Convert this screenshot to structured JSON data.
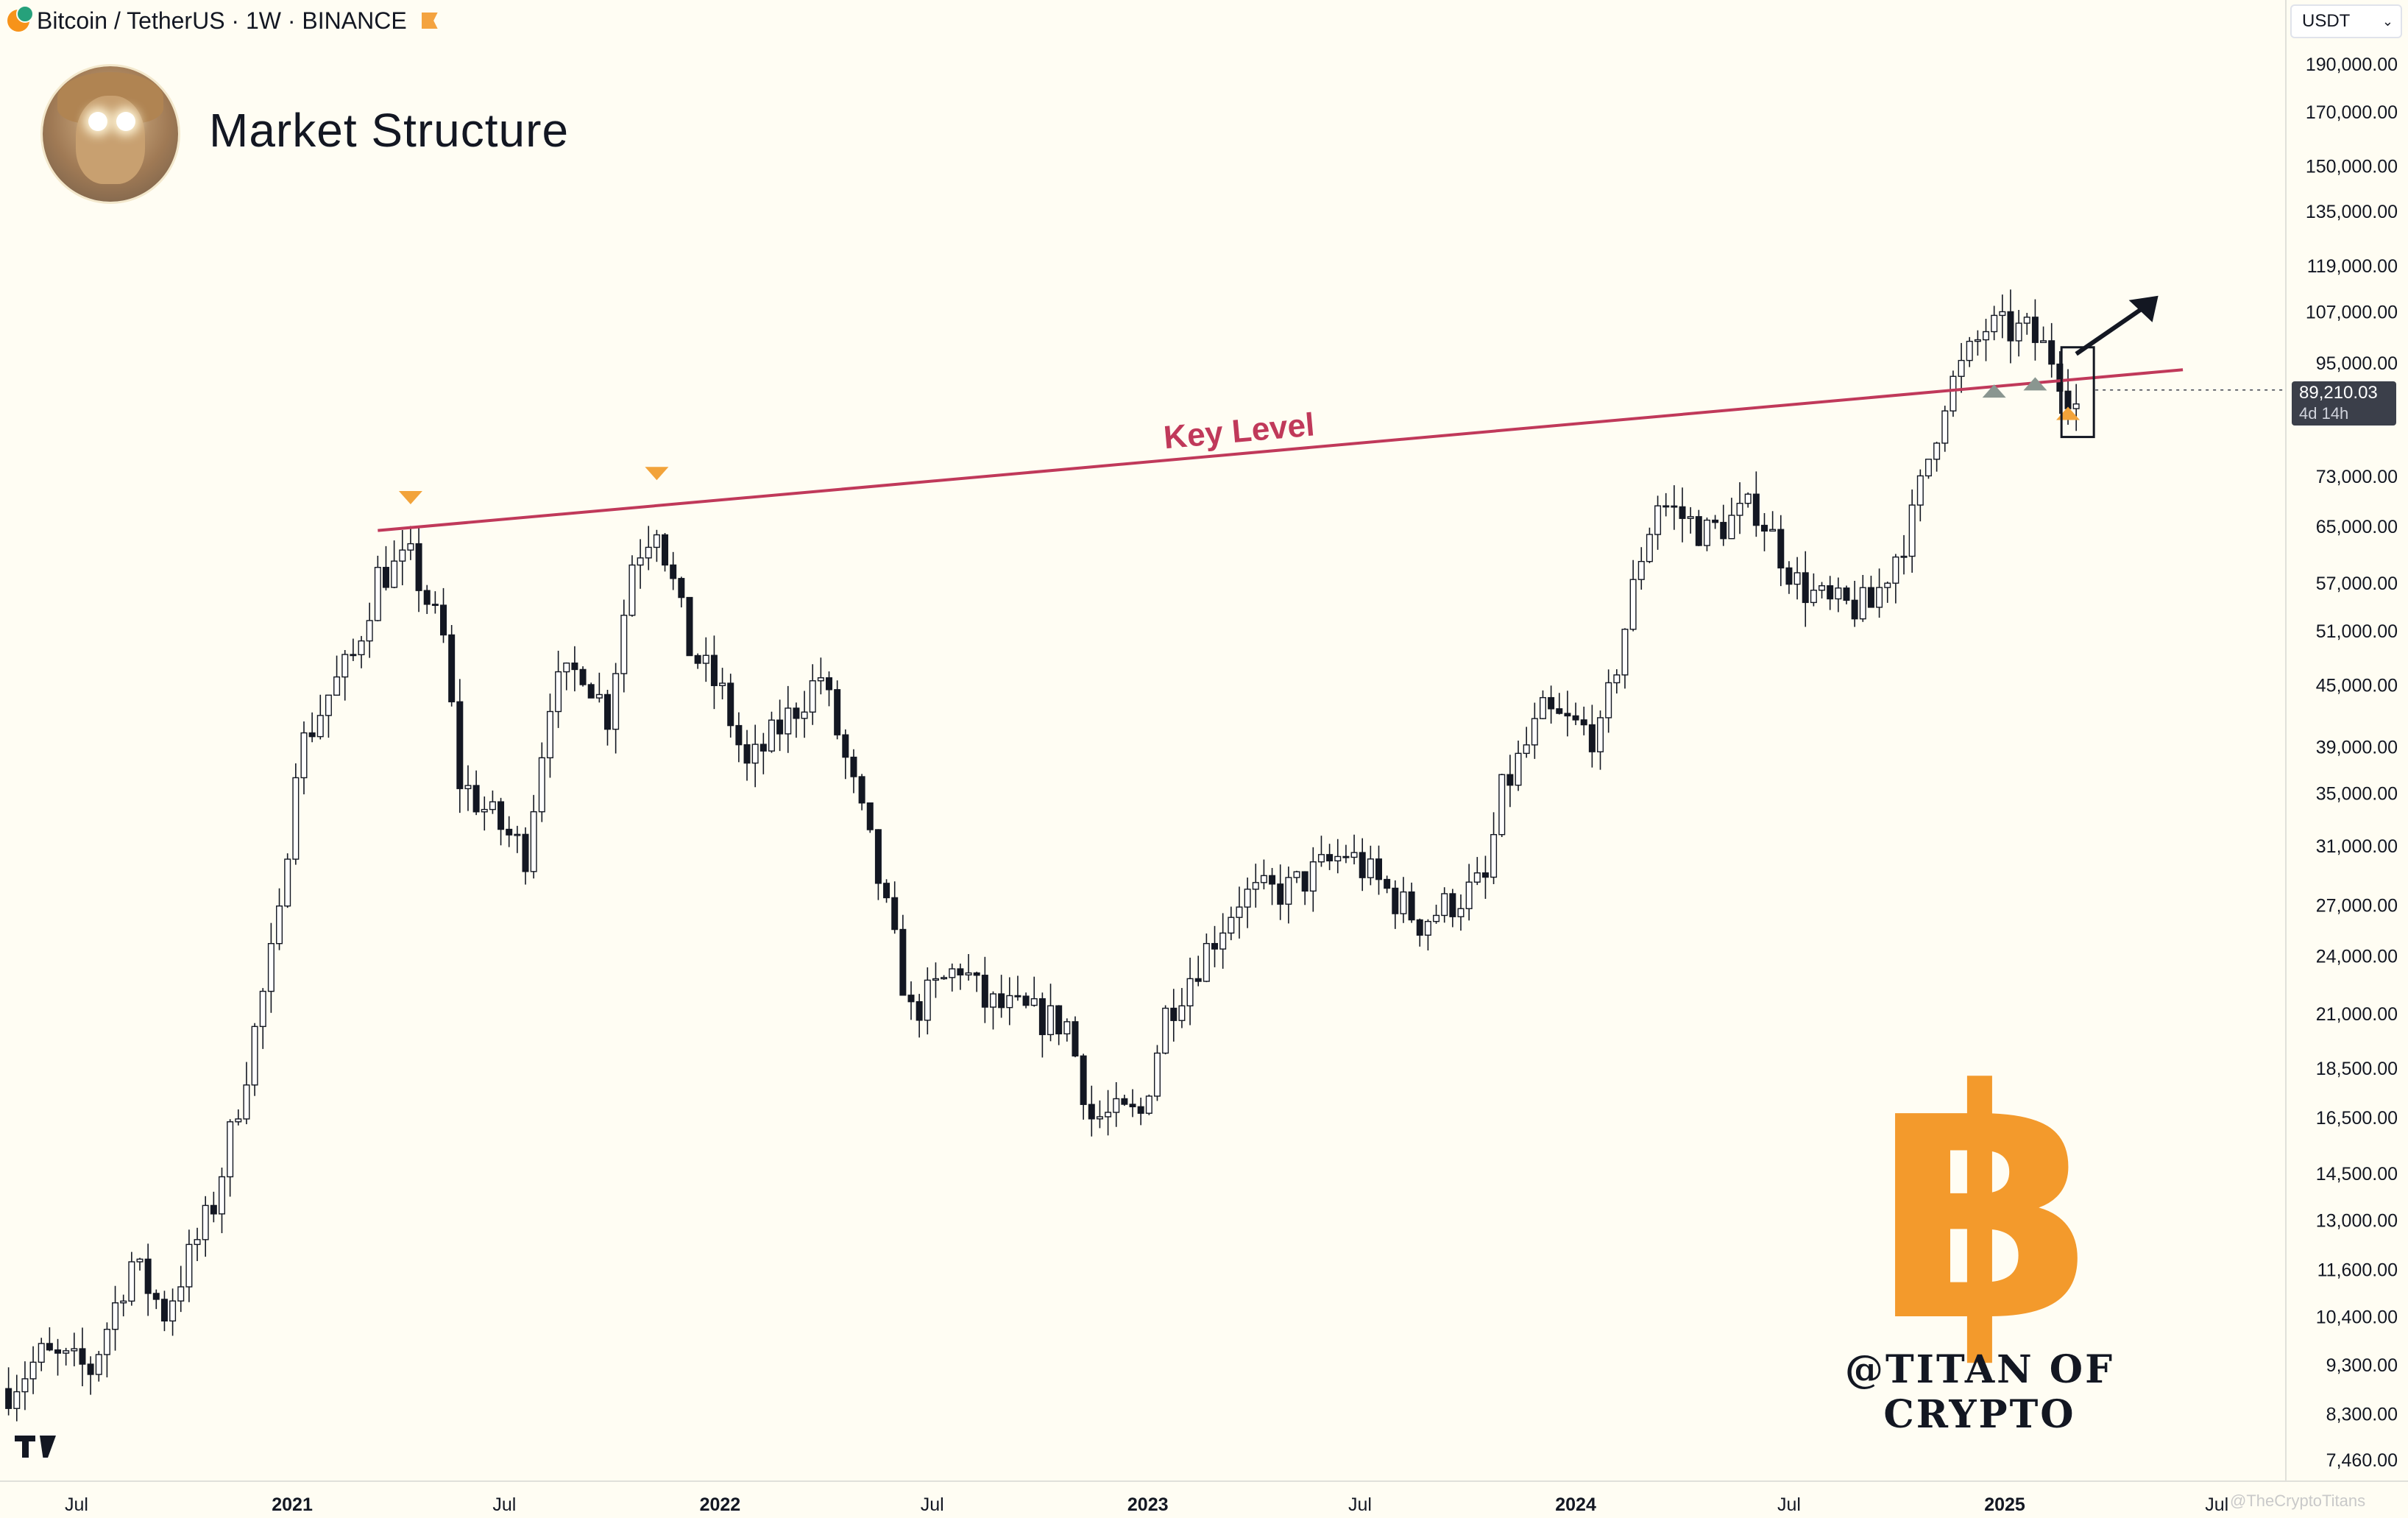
{
  "header": {
    "symbol_line": "Bitcoin / TetherUS · 1W · BINANCE"
  },
  "title": "Market Structure",
  "currency_select": {
    "value": "USDT"
  },
  "price_label": {
    "price": "89,210.03",
    "countdown": "4d 14h"
  },
  "watermark": "@TITAN OF CRYPTO",
  "watermark_small": "@TheCryptoTitans",
  "brand_logo_glyph": "฿",
  "colors": {
    "background": "#fffdf3",
    "candle": "#131722",
    "key_level": "#c0395a",
    "marker": "#f2a33a",
    "marker_gray": "#8a9690",
    "btc_orange": "#f39a2c"
  },
  "chart_data": {
    "type": "candlestick",
    "title": "Market Structure",
    "scale": "log",
    "y_ticks": [
      190000,
      170000,
      150000,
      135000,
      119000,
      107000,
      95000,
      73000,
      65000,
      57000,
      51000,
      45000,
      39000,
      35000,
      31000,
      27000,
      24000,
      21000,
      18500,
      16500,
      14500,
      13000,
      11600,
      10400,
      9300,
      8300,
      7460
    ],
    "y_tick_labels": [
      "190,000.00",
      "170,000.00",
      "150,000.00",
      "135,000.00",
      "119,000.00",
      "107,000.00",
      "95,000.00",
      "73,000.00",
      "65,000.00",
      "57,000.00",
      "51,000.00",
      "45,000.00",
      "39,000.00",
      "35,000.00",
      "31,000.00",
      "27,000.00",
      "24,000.00",
      "21,000.00",
      "18,500.00",
      "16,500.00",
      "14,500.00",
      "13,000.00",
      "11,600.00",
      "10,400.00",
      "9,300.00",
      "8,300.00",
      "7,460.00"
    ],
    "x_ticks": [
      {
        "label": "Jul",
        "date": "2020-07-01",
        "bold": false
      },
      {
        "label": "2021",
        "date": "2021-01-01",
        "bold": true
      },
      {
        "label": "Jul",
        "date": "2021-07-01",
        "bold": false
      },
      {
        "label": "2022",
        "date": "2022-01-01",
        "bold": true
      },
      {
        "label": "Jul",
        "date": "2022-07-01",
        "bold": false
      },
      {
        "label": "2023",
        "date": "2023-01-01",
        "bold": true
      },
      {
        "label": "Jul",
        "date": "2023-07-01",
        "bold": false
      },
      {
        "label": "2024",
        "date": "2024-01-01",
        "bold": true
      },
      {
        "label": "Jul",
        "date": "2024-07-01",
        "bold": false
      },
      {
        "label": "2025",
        "date": "2025-01-01",
        "bold": true
      },
      {
        "label": "Jul",
        "date": "2025-07-01",
        "bold": false
      }
    ],
    "anchors": [
      [
        "2020-05-04",
        8800
      ],
      [
        "2020-06-01",
        9500
      ],
      [
        "2020-07-13",
        9200
      ],
      [
        "2020-08-17",
        11800
      ],
      [
        "2020-09-14",
        10500
      ],
      [
        "2020-10-26",
        13500
      ],
      [
        "2020-11-23",
        18500
      ],
      [
        "2020-12-21",
        26000
      ],
      [
        "2021-01-04",
        38000
      ],
      [
        "2021-02-01",
        44000
      ],
      [
        "2021-02-22",
        48000
      ],
      [
        "2021-03-15",
        58000
      ],
      [
        "2021-04-12",
        60000
      ],
      [
        "2021-05-10",
        50000
      ],
      [
        "2021-05-24",
        36000
      ],
      [
        "2021-06-21",
        33000
      ],
      [
        "2021-07-19",
        30500
      ],
      [
        "2021-08-09",
        44000
      ],
      [
        "2021-09-06",
        47000
      ],
      [
        "2021-09-27",
        42000
      ],
      [
        "2021-10-18",
        60000
      ],
      [
        "2021-11-08",
        66000
      ],
      [
        "2021-12-06",
        49000
      ],
      [
        "2022-01-03",
        44000
      ],
      [
        "2022-01-24",
        37000
      ],
      [
        "2022-03-28",
        46000
      ],
      [
        "2022-05-09",
        31000
      ],
      [
        "2022-06-13",
        21000
      ],
      [
        "2022-07-25",
        23500
      ],
      [
        "2022-08-15",
        21500
      ],
      [
        "2022-10-24",
        20500
      ],
      [
        "2022-11-14",
        16500
      ],
      [
        "2022-12-26",
        16600
      ],
      [
        "2023-01-16",
        21000
      ],
      [
        "2023-03-20",
        27500
      ],
      [
        "2023-05-01",
        28000
      ],
      [
        "2023-06-19",
        30500
      ],
      [
        "2023-08-21",
        26000
      ],
      [
        "2023-10-16",
        28500
      ],
      [
        "2023-10-30",
        35000
      ],
      [
        "2023-12-04",
        42000
      ],
      [
        "2024-01-22",
        40000
      ],
      [
        "2024-02-26",
        61000
      ],
      [
        "2024-03-11",
        69000
      ],
      [
        "2024-04-22",
        64000
      ],
      [
        "2024-06-03",
        68000
      ],
      [
        "2024-07-08",
        57000
      ],
      [
        "2024-08-05",
        54000
      ],
      [
        "2024-09-09",
        54000
      ],
      [
        "2024-10-14",
        66000
      ],
      [
        "2024-11-11",
        88000
      ],
      [
        "2024-12-16",
        103000
      ],
      [
        "2025-01-20",
        102000
      ],
      [
        "2025-02-10",
        96500
      ],
      [
        "2025-03-03",
        86000
      ]
    ],
    "key_level": {
      "label": "Key Level",
      "start": {
        "date": "2021-03-15",
        "value": 64400
      },
      "end": {
        "date": "2025-06-02",
        "value": 93500
      }
    },
    "markers": [
      {
        "date": "2021-04-12",
        "value": 69500,
        "dir": "down",
        "color": "orange"
      },
      {
        "date": "2021-11-08",
        "value": 73500,
        "dir": "down",
        "color": "orange"
      },
      {
        "date": "2024-12-23",
        "value": 89000,
        "dir": "up",
        "color": "gray"
      },
      {
        "date": "2025-01-27",
        "value": 90500,
        "dir": "up",
        "color": "gray"
      },
      {
        "date": "2025-02-24",
        "value": 84500,
        "dir": "up",
        "color": "orange"
      }
    ],
    "arrow": {
      "from": {
        "date": "2025-03-03",
        "value": 97000
      },
      "to": {
        "date": "2025-05-12",
        "value": 111000
      }
    }
  }
}
